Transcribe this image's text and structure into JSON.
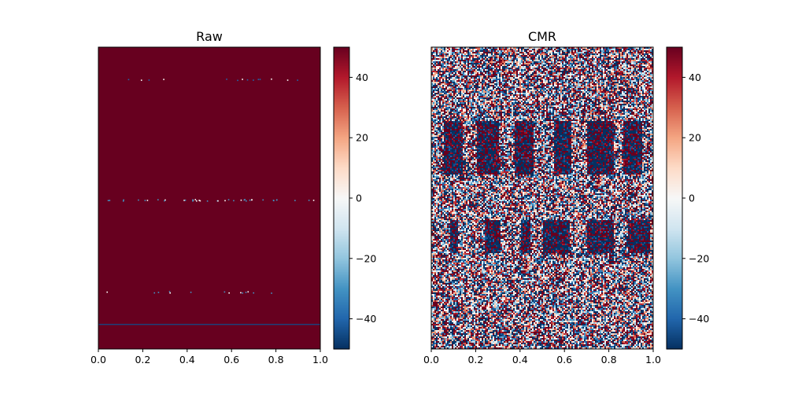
{
  "chart_data": [
    {
      "type": "heatmap",
      "title": "Raw",
      "xlabel": "",
      "ylabel": "",
      "xlim": [
        0.0,
        1.0
      ],
      "x_ticks": [
        "0.0",
        "0.2",
        "0.4",
        "0.6",
        "0.8",
        "1.0"
      ],
      "y_ticks": [],
      "grid": false,
      "colormap": "RdBu_r",
      "color_range": [
        -50,
        50
      ],
      "colorbar_ticks": [
        "40",
        "20",
        "0",
        "−20",
        "−40"
      ],
      "fill_value": 50,
      "description_features": [
        {
          "kind": "sparse-dots",
          "row": 0.105,
          "value": -40
        },
        {
          "kind": "dotted-row",
          "row": 0.505,
          "value": -30
        },
        {
          "kind": "sparse-dots",
          "row": 0.81,
          "value": -30
        },
        {
          "kind": "line",
          "row": 0.917,
          "value": -45
        }
      ]
    },
    {
      "type": "heatmap",
      "title": "CMR",
      "xlabel": "",
      "ylabel": "",
      "xlim": [
        0.0,
        1.0
      ],
      "x_ticks": [
        "0.0",
        "0.2",
        "0.4",
        "0.6",
        "0.8",
        "1.0"
      ],
      "y_ticks": [],
      "grid": false,
      "colormap": "RdBu_r",
      "color_range": [
        -50,
        50
      ],
      "colorbar_ticks": [
        "40",
        "20",
        "0",
        "−20",
        "−40"
      ],
      "noise_amplitude": 50,
      "bursts": [
        {
          "row_start": 0.24,
          "row_end": 0.42,
          "column_groups": [
            [
              0.05,
              0.14
            ],
            [
              0.2,
              0.3
            ],
            [
              0.37,
              0.46
            ],
            [
              0.55,
              0.63
            ],
            [
              0.7,
              0.82
            ],
            [
              0.86,
              0.95
            ]
          ]
        },
        {
          "row_start": 0.57,
          "row_end": 0.68,
          "column_groups": [
            [
              0.08,
              0.12
            ],
            [
              0.24,
              0.31
            ],
            [
              0.4,
              0.44
            ],
            [
              0.5,
              0.62
            ],
            [
              0.7,
              0.82
            ],
            [
              0.88,
              0.98
            ]
          ]
        }
      ]
    }
  ]
}
